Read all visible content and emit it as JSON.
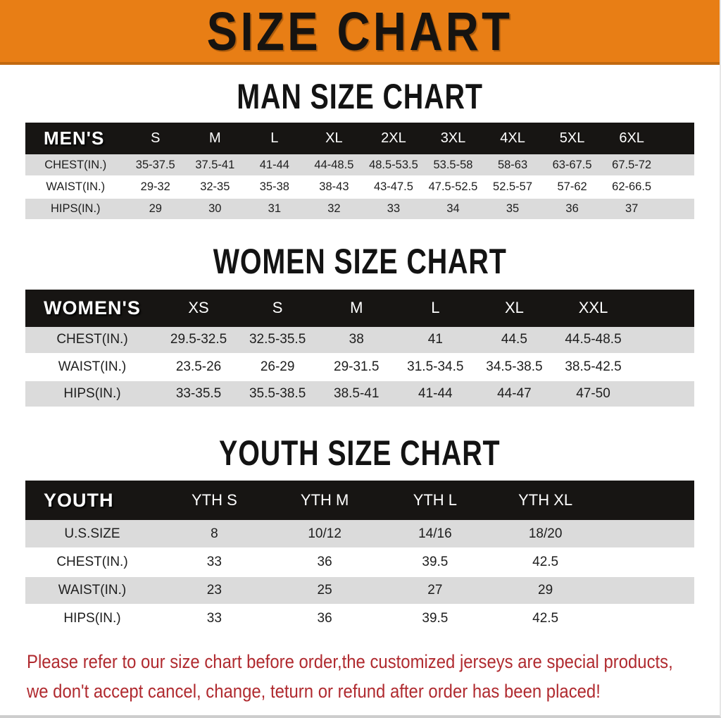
{
  "banner": {
    "title": "SIZE CHART"
  },
  "colors": {
    "banner_bg": "#E87E15",
    "banner_edge": "#C2690F",
    "header_bg": "#171513",
    "row_alt": "#DBDBDB",
    "footer_text": "#B02A2F"
  },
  "sections": [
    {
      "id": "men",
      "title": "MAN SIZE CHART",
      "table": {
        "group_label": "MEN'S",
        "columns": [
          "S",
          "M",
          "L",
          "XL",
          "2XL",
          "3XL",
          "4XL",
          "5XL",
          "6XL"
        ],
        "rows": [
          {
            "label": "CHEST(IN.)",
            "values": [
              "35-37.5",
              "37.5-41",
              "41-44",
              "44-48.5",
              "48.5-53.5",
              "53.5-58",
              "58-63",
              "63-67.5",
              "67.5-72"
            ]
          },
          {
            "label": "WAIST(IN.)",
            "values": [
              "29-32",
              "32-35",
              "35-38",
              "38-43",
              "43-47.5",
              "47.5-52.5",
              "52.5-57",
              "57-62",
              "62-66.5"
            ]
          },
          {
            "label": "HIPS(IN.)",
            "values": [
              "29",
              "30",
              "31",
              "32",
              "33",
              "34",
              "35",
              "36",
              "37"
            ]
          }
        ]
      }
    },
    {
      "id": "women",
      "title": "WOMEN SIZE CHART",
      "table": {
        "group_label": "WOMEN'S",
        "columns": [
          "XS",
          "S",
          "M",
          "L",
          "XL",
          "XXL"
        ],
        "rows": [
          {
            "label": "CHEST(IN.)",
            "values": [
              "29.5-32.5",
              "32.5-35.5",
              "38",
              "41",
              "44.5",
              "44.5-48.5"
            ]
          },
          {
            "label": "WAIST(IN.)",
            "values": [
              "23.5-26",
              "26-29",
              "29-31.5",
              "31.5-34.5",
              "34.5-38.5",
              "38.5-42.5"
            ]
          },
          {
            "label": "HIPS(IN.)",
            "values": [
              "33-35.5",
              "35.5-38.5",
              "38.5-41",
              "41-44",
              "44-47",
              "47-50"
            ]
          }
        ]
      }
    },
    {
      "id": "youth",
      "title": "YOUTH SIZE CHART",
      "table": {
        "group_label": "YOUTH",
        "columns": [
          "YTH S",
          "YTH M",
          "YTH L",
          "YTH XL"
        ],
        "rows": [
          {
            "label": "U.S.SIZE",
            "values": [
              "8",
              "10/12",
              "14/16",
              "18/20"
            ]
          },
          {
            "label": "CHEST(IN.)",
            "values": [
              "33",
              "36",
              "39.5",
              "42.5"
            ]
          },
          {
            "label": "WAIST(IN.)",
            "values": [
              "23",
              "25",
              "27",
              "29"
            ]
          },
          {
            "label": "HIPS(IN.)",
            "values": [
              "33",
              "36",
              "39.5",
              "42.5"
            ]
          }
        ]
      }
    }
  ],
  "footer": {
    "line1": "Please refer to our size chart before order,the customized jerseys are special products,",
    "line2": "we don't accept cancel, change, teturn or refund after order has been placed!"
  }
}
